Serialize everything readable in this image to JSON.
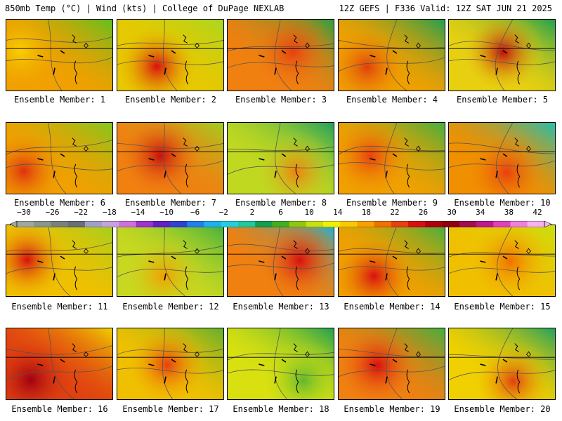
{
  "header": {
    "left": "850mb Temp (°C) | Wind (kts) | College of DuPage NEXLAB",
    "right": "12Z GEFS | F336 Valid: 12Z SAT JUN 21 2025"
  },
  "colorbar": {
    "labels": [
      "−30",
      "−26",
      "−22",
      "−18",
      "−14",
      "−10",
      "−6",
      "−2",
      "2",
      "6",
      "10",
      "14",
      "18",
      "22",
      "26",
      "30",
      "34",
      "38",
      "42"
    ],
    "colors": [
      "#9fa8a0",
      "#8a958d",
      "#78827b",
      "#6a6e78",
      "#a0a0c8",
      "#c8a0e0",
      "#d070e0",
      "#a030d0",
      "#6020c8",
      "#3040d8",
      "#2080f0",
      "#20b0f0",
      "#20d0e0",
      "#20c8a0",
      "#10a050",
      "#40b020",
      "#90c810",
      "#c8e010",
      "#f0f000",
      "#f8c800",
      "#f8a000",
      "#f07000",
      "#e84010",
      "#d81010",
      "#b00010",
      "#900010",
      "#a01050",
      "#c01890",
      "#e040c0",
      "#f080e0",
      "#f8b0f0"
    ]
  },
  "panels": [
    {
      "label": "Ensemble Member: 1",
      "base": "#f0a000",
      "top": "#60c020",
      "blob": "#f8d000"
    },
    {
      "label": "Ensemble Member: 2",
      "base": "#e8c800",
      "top": "#a8d820",
      "blob": "#d81010"
    },
    {
      "label": "Ensemble Member: 3",
      "base": "#f08010",
      "top": "#30a040",
      "blob": "#e84010"
    },
    {
      "label": "Ensemble Member: 4",
      "base": "#f0a000",
      "top": "#20a050",
      "blob": "#e04010"
    },
    {
      "label": "Ensemble Member: 5",
      "base": "#e8d010",
      "top": "#20a050",
      "blob": "#c01010"
    },
    {
      "label": "Ensemble Member: 6",
      "base": "#f0a000",
      "top": "#80c820",
      "blob": "#e03010"
    },
    {
      "label": "Ensemble Member: 7",
      "base": "#f08010",
      "top": "#a0d020",
      "blob": "#c81010"
    },
    {
      "label": "Ensemble Member: 8",
      "base": "#c0d820",
      "top": "#20a060",
      "blob": "#f08010"
    },
    {
      "label": "Ensemble Member: 9",
      "base": "#f0a000",
      "top": "#40b040",
      "blob": "#e84010"
    },
    {
      "label": "Ensemble Member: 10",
      "base": "#f09000",
      "top": "#20c0b0",
      "blob": "#e84010"
    },
    {
      "label": "Ensemble Member: 11",
      "base": "#f0c000",
      "top": "#a0d020",
      "blob": "#d81010"
    },
    {
      "label": "Ensemble Member: 12",
      "base": "#c8d820",
      "top": "#40b040",
      "blob": "#f0a000"
    },
    {
      "label": "Ensemble Member: 13",
      "base": "#f08010",
      "top": "#20b0d0",
      "blob": "#d81010"
    },
    {
      "label": "Ensemble Member: 14",
      "base": "#f0a000",
      "top": "#40b040",
      "blob": "#d81010"
    },
    {
      "label": "Ensemble Member: 15",
      "base": "#f0c000",
      "top": "#c8e010",
      "blob": "#f07000"
    },
    {
      "label": "Ensemble Member: 16",
      "base": "#e04010",
      "top": "#f0d000",
      "blob": "#a00010"
    },
    {
      "label": "Ensemble Member: 17",
      "base": "#f0c000",
      "top": "#60b030",
      "blob": "#e84010"
    },
    {
      "label": "Ensemble Member: 18",
      "base": "#d8e010",
      "top": "#20a050",
      "blob": "#60b830"
    },
    {
      "label": "Ensemble Member: 19",
      "base": "#f08010",
      "top": "#40b040",
      "blob": "#d81010"
    },
    {
      "label": "Ensemble Member: 20",
      "base": "#f0d000",
      "top": "#20a060",
      "blob": "#e04010"
    }
  ]
}
